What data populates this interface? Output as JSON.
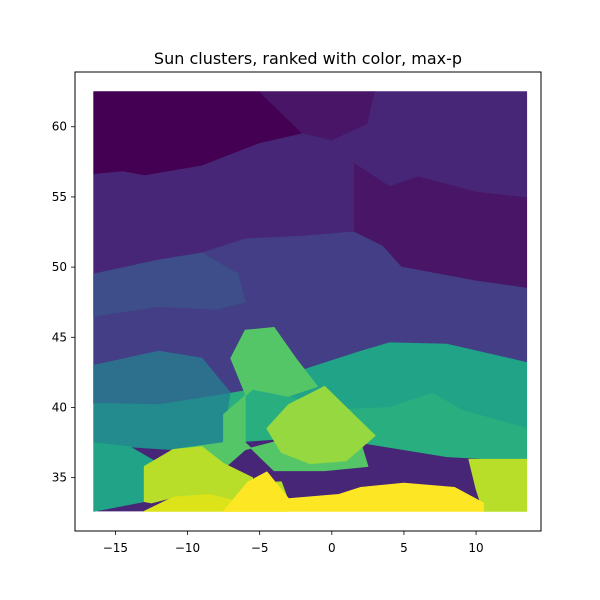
{
  "chart_data": {
    "type": "heatmap",
    "title": "Sun clusters, ranked with color, max-p",
    "xlabel": "",
    "ylabel": "",
    "xlim": [
      -17.8,
      14.5
    ],
    "ylim": [
      31.2,
      63.9
    ],
    "x_ticks": [
      -15,
      -10,
      -5,
      0,
      5,
      10
    ],
    "x_tick_labels": [
      "−15",
      "−10",
      "−5",
      "0",
      "5",
      "10"
    ],
    "y_ticks": [
      35,
      40,
      45,
      50,
      55,
      60
    ],
    "y_tick_labels": [
      "35",
      "40",
      "45",
      "50",
      "55",
      "60"
    ],
    "grid": false,
    "colormap": "viridis",
    "palette": [
      "#440154",
      "#481567",
      "#482677",
      "#433e85",
      "#3d4e8a",
      "#2d708e",
      "#238a8d",
      "#20a386",
      "#29af7f",
      "#55c667",
      "#95d840",
      "#b8de29",
      "#dce319",
      "#fde725"
    ],
    "regions": [
      {
        "rank": 0,
        "points": [
          [
            -16.5,
            62.5
          ],
          [
            -5,
            62.5
          ],
          [
            -3.5,
            61
          ],
          [
            -2,
            59.5
          ],
          [
            -5,
            58.8
          ],
          [
            -9,
            57.2
          ],
          [
            -13,
            56.5
          ],
          [
            -14.5,
            56.8
          ],
          [
            -16.5,
            56.6
          ]
        ]
      },
      {
        "rank": 1,
        "points": [
          [
            -5,
            62.5
          ],
          [
            -3.5,
            61
          ],
          [
            -2,
            59.5
          ],
          [
            0,
            59
          ],
          [
            2.5,
            60.2
          ],
          [
            3,
            62.5
          ]
        ]
      },
      {
        "rank": 1,
        "points": [
          [
            1.5,
            57.5
          ],
          [
            4,
            55.8
          ],
          [
            6,
            56.5
          ],
          [
            10,
            55.4
          ],
          [
            13.5,
            55
          ],
          [
            13.5,
            48.5
          ],
          [
            10,
            49
          ],
          [
            4.8,
            50
          ],
          [
            3.5,
            51.5
          ],
          [
            1.5,
            52.5
          ]
        ]
      },
      {
        "rank": 2,
        "points": [
          [
            3,
            62.5
          ],
          [
            13.5,
            62.5
          ],
          [
            13.5,
            55
          ],
          [
            10,
            55.4
          ],
          [
            6,
            56.5
          ],
          [
            4,
            55.8
          ],
          [
            1.5,
            57.5
          ],
          [
            0,
            59
          ],
          [
            2.5,
            60.2
          ]
        ]
      },
      {
        "rank": 2,
        "points": [
          [
            -16.5,
            56.6
          ],
          [
            -14.5,
            56.8
          ],
          [
            -13,
            56.5
          ],
          [
            -9,
            57.2
          ],
          [
            -5,
            58.8
          ],
          [
            -2,
            59.5
          ],
          [
            0,
            59
          ],
          [
            1.5,
            57.5
          ],
          [
            1.5,
            52.5
          ],
          [
            -2,
            52.2
          ],
          [
            -6,
            52
          ],
          [
            -9,
            51
          ],
          [
            -12,
            50.5
          ],
          [
            -16.5,
            49.5
          ]
        ]
      },
      {
        "rank": 3,
        "points": [
          [
            -16.5,
            49.5
          ],
          [
            -12,
            50.5
          ],
          [
            -9,
            51
          ],
          [
            -6,
            52
          ],
          [
            -2,
            52.2
          ],
          [
            1.5,
            52.5
          ],
          [
            3.5,
            51.5
          ],
          [
            4.8,
            50
          ],
          [
            10,
            49
          ],
          [
            13.5,
            48.5
          ],
          [
            13.5,
            43.2
          ],
          [
            8,
            44.5
          ],
          [
            4,
            44.6
          ],
          [
            2,
            44
          ],
          [
            -4,
            42
          ],
          [
            -7,
            41
          ],
          [
            -12,
            40.5
          ],
          [
            -16.5,
            40.3
          ]
        ]
      },
      {
        "rank": 4,
        "points": [
          [
            -16.5,
            49.5
          ],
          [
            -12,
            50.5
          ],
          [
            -9,
            51
          ],
          [
            -6.5,
            49.5
          ],
          [
            -6,
            47.5
          ],
          [
            -8,
            47
          ],
          [
            -12,
            47.2
          ],
          [
            -16.5,
            46.5
          ]
        ]
      },
      {
        "rank": 5,
        "points": [
          [
            -16.5,
            43
          ],
          [
            -12,
            44
          ],
          [
            -9,
            43.5
          ],
          [
            -7,
            41
          ],
          [
            -12,
            40.2
          ],
          [
            -16.5,
            40.3
          ]
        ]
      },
      {
        "rank": 6,
        "points": [
          [
            -16.5,
            40.3
          ],
          [
            -12,
            40.2
          ],
          [
            -7,
            41
          ],
          [
            -7.5,
            37.5
          ],
          [
            -11,
            37
          ],
          [
            -14,
            37.2
          ],
          [
            -16.5,
            37.5
          ]
        ]
      },
      {
        "rank": 7,
        "points": [
          [
            -6,
            42
          ],
          [
            -4,
            42
          ],
          [
            2,
            44
          ],
          [
            4,
            44.6
          ],
          [
            8,
            44.5
          ],
          [
            13.5,
            43.2
          ],
          [
            13.5,
            38.5
          ],
          [
            9,
            39.8
          ],
          [
            7,
            41
          ],
          [
            4,
            40
          ],
          [
            0,
            39.8
          ],
          [
            -3,
            40.8
          ],
          [
            -5.5,
            41.3
          ]
        ]
      },
      {
        "rank": 7,
        "points": [
          [
            -16.5,
            37.5
          ],
          [
            -14,
            37.2
          ],
          [
            -12,
            36
          ],
          [
            -13,
            33.3
          ],
          [
            -16.5,
            32.6
          ]
        ]
      },
      {
        "rank": 8,
        "points": [
          [
            -7,
            41
          ],
          [
            -5.5,
            41.3
          ],
          [
            -3,
            40.8
          ],
          [
            0,
            39.8
          ],
          [
            4,
            40
          ],
          [
            7,
            41
          ],
          [
            9,
            39.8
          ],
          [
            13.5,
            38.5
          ],
          [
            13.5,
            36.2
          ],
          [
            8,
            36.5
          ],
          [
            2,
            37.5
          ],
          [
            -3,
            37.8
          ],
          [
            -7.5,
            37.5
          ]
        ]
      },
      {
        "rank": 9,
        "points": [
          [
            -6,
            45.5
          ],
          [
            -4,
            45.7
          ],
          [
            -2.5,
            43.5
          ],
          [
            -1,
            41.5
          ],
          [
            -3,
            40.8
          ],
          [
            -5.5,
            41.3
          ],
          [
            -7.5,
            39.5
          ],
          [
            -7.5,
            37.5
          ],
          [
            -11,
            37
          ],
          [
            -12,
            36
          ],
          [
            -10,
            35
          ],
          [
            -8,
            35.2
          ],
          [
            -6,
            37
          ],
          [
            -3,
            37.8
          ],
          [
            2,
            37.5
          ],
          [
            2.5,
            35.8
          ],
          [
            -0.5,
            35.5
          ],
          [
            -4,
            35.5
          ],
          [
            -6,
            37.5
          ],
          [
            -6,
            41
          ],
          [
            -7,
            43.5
          ]
        ]
      },
      {
        "rank": 10,
        "points": [
          [
            -3,
            40.2
          ],
          [
            -0.5,
            41.5
          ],
          [
            1.5,
            39.5
          ],
          [
            3,
            38
          ],
          [
            1,
            36.2
          ],
          [
            -1.5,
            36
          ],
          [
            -3.5,
            36.8
          ],
          [
            -4.5,
            38.5
          ]
        ]
      },
      {
        "rank": 11,
        "points": [
          [
            -13,
            35.8
          ],
          [
            -11,
            37
          ],
          [
            -9,
            37.2
          ],
          [
            -7.5,
            36
          ],
          [
            -5.5,
            35
          ],
          [
            -5.5,
            34.6
          ],
          [
            -3.5,
            34.7
          ],
          [
            -3,
            33.3
          ],
          [
            -6.5,
            33.3
          ],
          [
            -8.5,
            33.8
          ],
          [
            -11,
            33.6
          ],
          [
            -12.5,
            33.2
          ],
          [
            -13,
            33.3
          ]
        ]
      },
      {
        "rank": 11,
        "points": [
          [
            9.5,
            36.3
          ],
          [
            13.5,
            36.3
          ],
          [
            13.5,
            32.6
          ],
          [
            10.5,
            32.6
          ],
          [
            10,
            34.2
          ]
        ]
      },
      {
        "rank": 12,
        "points": [
          [
            -13,
            32.6
          ],
          [
            -11,
            33.6
          ],
          [
            -8.5,
            33.8
          ],
          [
            -6.5,
            33.3
          ],
          [
            -3,
            33.3
          ],
          [
            -3,
            32.6
          ]
        ]
      },
      {
        "rank": 13,
        "points": [
          [
            -7.5,
            32.6
          ],
          [
            -5.8,
            34.7
          ],
          [
            -4.5,
            35.4
          ],
          [
            -3,
            33.5
          ],
          [
            0.5,
            33.8
          ],
          [
            2,
            34.3
          ],
          [
            5,
            34.6
          ],
          [
            8.5,
            34.3
          ],
          [
            10.5,
            33.2
          ],
          [
            10.5,
            32.6
          ]
        ]
      }
    ]
  }
}
